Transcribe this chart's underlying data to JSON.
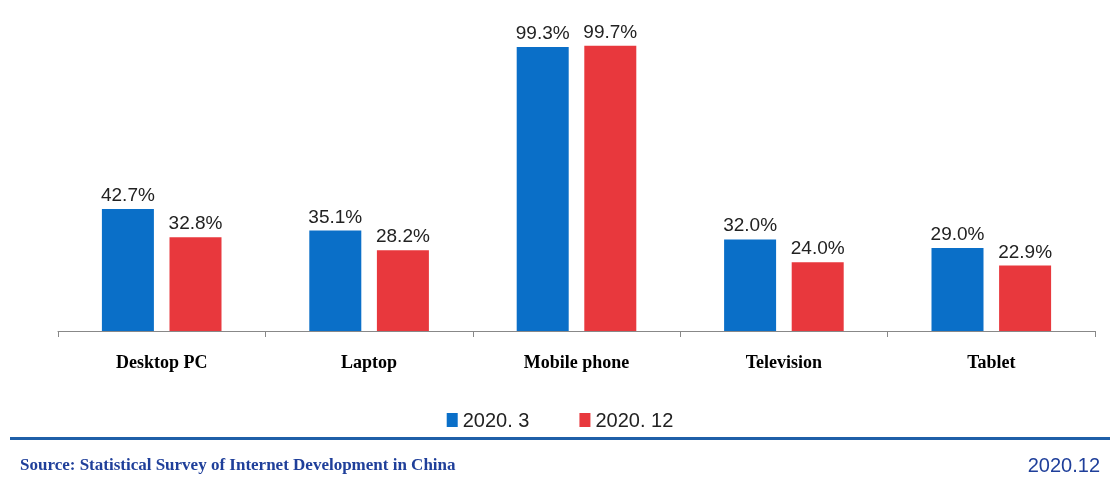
{
  "chart_data": {
    "type": "bar",
    "categories": [
      "Desktop PC",
      "Laptop",
      "Mobile phone",
      "Television",
      "Tablet"
    ],
    "series": [
      {
        "name": "2020. 3",
        "color": "#0a6fc8",
        "values": [
          42.7,
          35.1,
          99.3,
          32.0,
          29.0
        ],
        "value_labels": [
          "42.7%",
          "35.1%",
          "99.3%",
          "32.0%",
          "29.0%"
        ]
      },
      {
        "name": "2020. 12",
        "color": "#e8383d",
        "values": [
          32.8,
          28.2,
          99.7,
          24.0,
          22.9
        ],
        "value_labels": [
          "32.8%",
          "28.2%",
          "99.7%",
          "24.0%",
          "22.9%"
        ]
      }
    ],
    "legend": "bottom",
    "annotations": [
      "Source: Statistical Survey of Internet Development in China",
      "2020.12"
    ]
  }
}
